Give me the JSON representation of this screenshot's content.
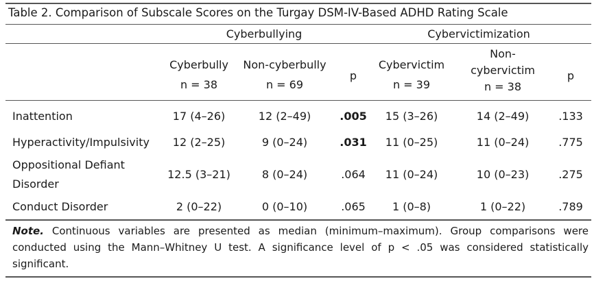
{
  "caption": "Table 2. Comparison of Subscale Scores on the Turgay DSM-IV-Based ADHD Rating Scale",
  "groups": {
    "bullying": "Cyberbullying",
    "victimization": "Cybervictimization"
  },
  "columns": {
    "cyberbully": [
      "Cyberbully",
      "n = 38"
    ],
    "non_cyberbully": [
      "Non-cyberbully",
      "n = 69"
    ],
    "p1": "p",
    "cybervictim": [
      "Cybervictim",
      "n = 39"
    ],
    "non_cybervictim": [
      "Non-",
      "cybervictim",
      "n = 38"
    ],
    "p2": "p"
  },
  "rows": [
    {
      "label": [
        "Inattention"
      ],
      "cyberbully": "17 (4–26)",
      "non_cyberbully": "12 (2–49)",
      "p1": ".005",
      "p1_bold": true,
      "cybervictim": "15 (3–26)",
      "non_cybervictim": "14 (2–49)",
      "p2": ".133"
    },
    {
      "label": [
        "Hyperactivity/Impulsivity"
      ],
      "cyberbully": "12 (2–25)",
      "non_cyberbully": "9 (0–24)",
      "p1": ".031",
      "p1_bold": true,
      "cybervictim": "11 (0–25)",
      "non_cybervictim": "11 (0–24)",
      "p2": ".775"
    },
    {
      "label": [
        "Oppositional Defiant",
        "Disorder"
      ],
      "cyberbully": "12.5 (3–21)",
      "non_cyberbully": "8 (0–24)",
      "p1": ".064",
      "p1_bold": false,
      "cybervictim": "11 (0–24)",
      "non_cybervictim": "10 (0–23)",
      "p2": ".275"
    },
    {
      "label": [
        "Conduct Disorder"
      ],
      "cyberbully": "2 (0–22)",
      "non_cyberbully": "0 (0–10)",
      "p1": ".065",
      "p1_bold": false,
      "cybervictim": "1 (0–8)",
      "non_cybervictim": "1 (0–22)",
      "p2": ".789"
    }
  ],
  "note": {
    "label": "Note.",
    "text": " Continuous variables are presented as median (minimum–maximum). Group comparisons were conducted using the Mann–Whitney U test. A significance level of p < .05 was considered statistically significant."
  }
}
